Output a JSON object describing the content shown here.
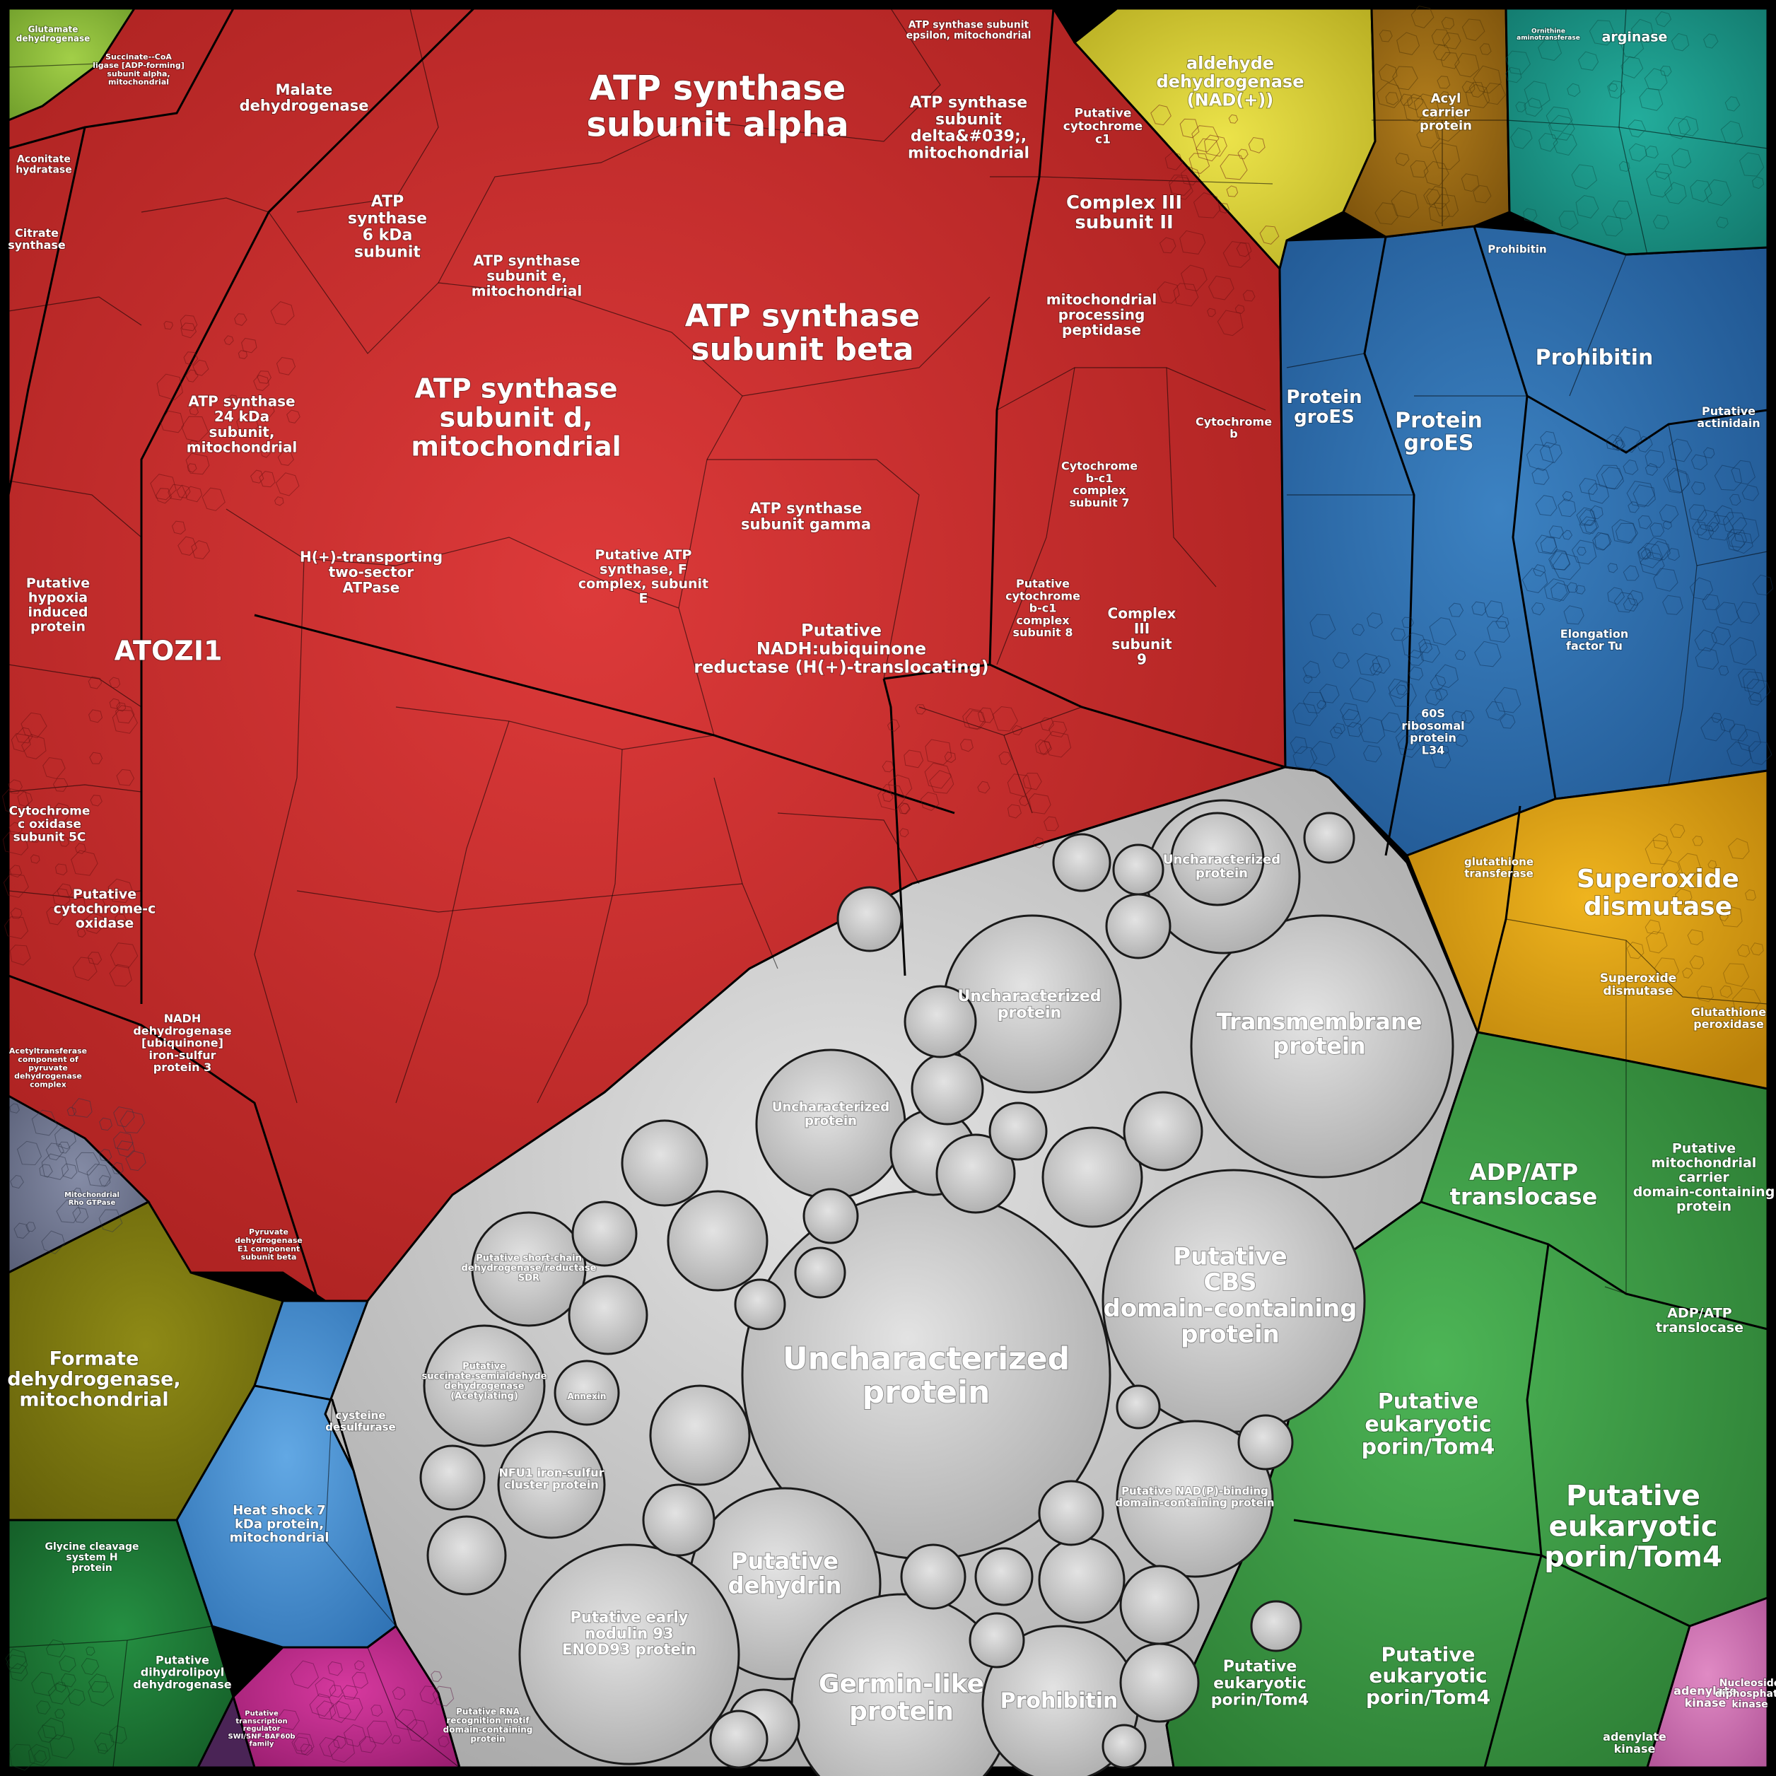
{
  "chart_data": {
    "type": "voronoi-treemap",
    "title": "",
    "colors": {
      "red": "#c42a2c",
      "grey": "#c9c9c9",
      "blue": "#2f6fad",
      "green": "#3c9a46",
      "orange": "#d99a12",
      "yellow": "#d9d23a",
      "brown": "#9a6a14",
      "teal": "#1c9a8a",
      "lightgreen": "#8fbf3a",
      "olive": "#7e7a10",
      "darkgreen": "#1d7a36",
      "magenta": "#c02a8e",
      "pink": "#d070b0",
      "purple": "#5a2a66",
      "skyblue": "#4a8fd0",
      "slate": "#6f7690"
    },
    "labels": [
      "ATP synthase subunit alpha",
      "ATP synthase subunit beta",
      "ATP synthase subunit d, mitochondrial",
      "ATOZI1",
      "Malate dehydrogenase",
      "ATP synthase 6 kDa subunit",
      "ATP synthase subunit e, mitochondrial",
      "ATP synthase subunit delta&#039;, mitochondrial",
      "ATP synthase subunit epsilon, mitochondrial",
      "Putative cytochrome c1",
      "Complex III subunit II",
      "mitochondrial processing peptidase",
      "ATP synthase 24 kDa subunit, mitochondrial",
      "H(+)-transporting two-sector ATPase",
      "Putative ATP synthase, F complex, subunit E",
      "ATP synthase subunit gamma",
      "Putative NADH:ubiquinone reductase (H(+)-translocating)",
      "Putative cytochrome b-c1 complex subunit 8",
      "Complex III subunit 9",
      "Cytochrome b-c1 complex subunit 7",
      "Cytochrome b",
      "Putative hypoxia induced protein",
      "Cytochrome c oxidase subunit 5C",
      "Putative cytochrome-c oxidase",
      "NADH dehydrogenase [ubiquinone] iron-sulfur protein 3",
      "Acetyltransferase component of pyruvate dehydrogenase complex",
      "Pyruvate dehydrogenase E1 component subunit beta",
      "Citrate synthase",
      "Aconitate hydratase",
      "Succinate--CoA ligase [ADP-forming] subunit alpha, mitochondrial",
      "Glutamate dehydrogenase",
      "aldehyde dehydrogenase (NAD(+))",
      "Acyl carrier protein",
      "arginase",
      "Ornithine aminotransferase",
      "Protein groES",
      "Prohibitin",
      "Putative actinidain",
      "Elongation factor Tu",
      "60S ribosomal protein L34",
      "Superoxide dismutase",
      "Glutathione peroxidase",
      "glutathione transferase",
      "ADP/ATP translocase",
      "Putative mitochondrial carrier domain-containing protein",
      "Putative eukaryotic porin/Tom4",
      "adenylate kinase",
      "Nucleoside diphosphate kinase",
      "Uncharacterized protein",
      "Transmembrane protein",
      "Putative CBS domain-containing protein",
      "Putative dehydrin",
      "Germin-like protein",
      "Putative early nodulin 93 ENOD93 protein",
      "NFU1 iron-sulfur cluster protein",
      "Putative NAD(P)-binding domain-containing protein",
      "Formate dehydrogenase, mitochondrial",
      "Heat shock 7 kDa protein, mitochondrial",
      "cysteine desulfurase",
      "Glycine cleavage system H protein",
      "Putative dihydrolipoyl dehydrogenase",
      "Putative RNA recognition motif domain-containing protein",
      "Putative transcription regulator SWI/SNF-BAF60b family",
      "Putative succinate-semialdehyde dehydrogenase (Acetylating)",
      "Putative short-chain dehydrogenase/reductase SDR",
      "Annexin",
      "Mitochondrial Rho GTPase"
    ]
  }
}
